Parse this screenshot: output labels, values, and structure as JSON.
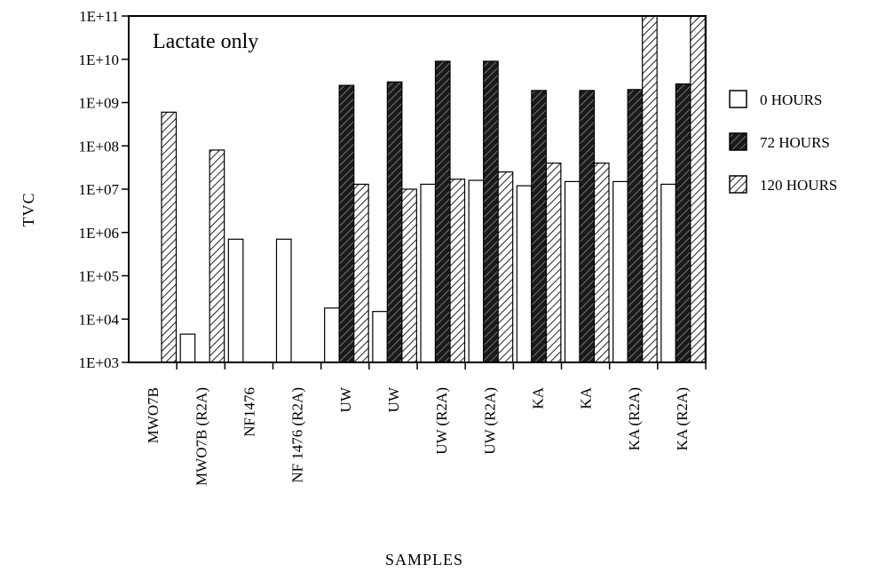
{
  "chart_data": {
    "type": "bar",
    "title": "",
    "annotation": "Lactate only",
    "xlabel": "SAMPLES",
    "ylabel": "TVC",
    "y_scale": "log",
    "ylim": [
      1000,
      100000000000
    ],
    "y_ticks": [
      "1E+03",
      "1E+04",
      "1E+05",
      "1E+06",
      "1E+07",
      "1E+08",
      "1E+09",
      "1E+10",
      "1E+11"
    ],
    "categories": [
      "MWO7B",
      "MWO7B (R2A)",
      "NF1476",
      "NF 1476 (R2A)",
      "UW",
      "UW",
      "UW (R2A)",
      "UW (R2A)",
      "KA",
      "KA",
      "KA (R2A)",
      "KA (R2A)"
    ],
    "series": [
      {
        "name": "0 HOURS",
        "pattern": "white",
        "values": [
          1000,
          4500,
          700000,
          700000,
          18000,
          15000,
          13000000,
          16000000,
          12000000,
          15000000,
          15000000,
          13000000
        ]
      },
      {
        "name": "72 HOURS",
        "pattern": "dark-hatch",
        "values": [
          1000,
          1000,
          1000,
          1000,
          2500000000,
          3000000000,
          9000000000,
          9000000000,
          1900000000,
          1900000000,
          2000000000,
          2700000000
        ]
      },
      {
        "name": "120 HOURS",
        "pattern": "light-hatch",
        "values": [
          600000000,
          80000000,
          1000,
          1000,
          13000000,
          10000000,
          17000000,
          25000000,
          40000000,
          40000000,
          100000000000,
          100000000000
        ]
      }
    ],
    "legend_position": "right",
    "grid": false
  }
}
